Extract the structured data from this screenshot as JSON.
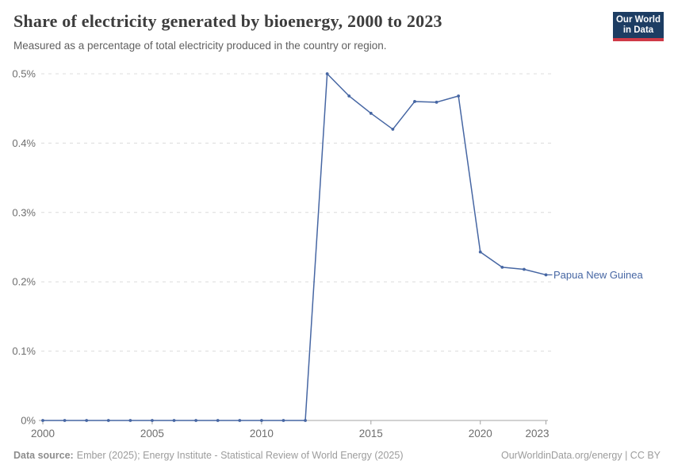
{
  "header": {
    "title": "Share of electricity generated by bioenergy, 2000 to 2023",
    "subtitle": "Measured as a percentage of total electricity produced in the country or region."
  },
  "logo": {
    "line1": "Our World",
    "line2": "in Data",
    "bg_color": "#1d3d63",
    "stripe_color": "#cf3a47"
  },
  "chart_data": {
    "type": "line",
    "title": "Share of electricity generated by bioenergy, 2000 to 2023",
    "xlabel": "",
    "ylabel": "",
    "unit": "%",
    "ylim": [
      0,
      0.5
    ],
    "grid": "horizontal-dashed",
    "legend_position": "end-of-line-label",
    "x": [
      2000,
      2001,
      2002,
      2003,
      2004,
      2005,
      2006,
      2007,
      2008,
      2009,
      2010,
      2011,
      2012,
      2013,
      2014,
      2015,
      2016,
      2017,
      2018,
      2019,
      2020,
      2021,
      2022,
      2023
    ],
    "series": [
      {
        "name": "Papua New Guinea",
        "color": "#4666a3",
        "values": [
          0,
          0,
          0,
          0,
          0,
          0,
          0,
          0,
          0,
          0,
          0,
          0,
          0,
          0.5,
          0.468,
          0.443,
          0.42,
          0.46,
          0.459,
          0.468,
          0.243,
          0.221,
          0.218,
          0.21
        ]
      }
    ],
    "yticks": [
      {
        "value": 0,
        "label": "0%"
      },
      {
        "value": 0.1,
        "label": "0.1%"
      },
      {
        "value": 0.2,
        "label": "0.2%"
      },
      {
        "value": 0.3,
        "label": "0.3%"
      },
      {
        "value": 0.4,
        "label": "0.4%"
      },
      {
        "value": 0.5,
        "label": "0.5%"
      }
    ],
    "xticks": [
      2000,
      2005,
      2010,
      2015,
      2020,
      2023
    ],
    "axis_color": "#a3a3a3",
    "grid_color": "#dcdcdc",
    "tick_label_color": "#6e6e6e"
  },
  "footer": {
    "source_label": "Data source:",
    "source_text": "Ember (2025); Energy Institute - Statistical Review of World Energy (2025)",
    "right_text": "OurWorldinData.org/energy | CC BY"
  }
}
